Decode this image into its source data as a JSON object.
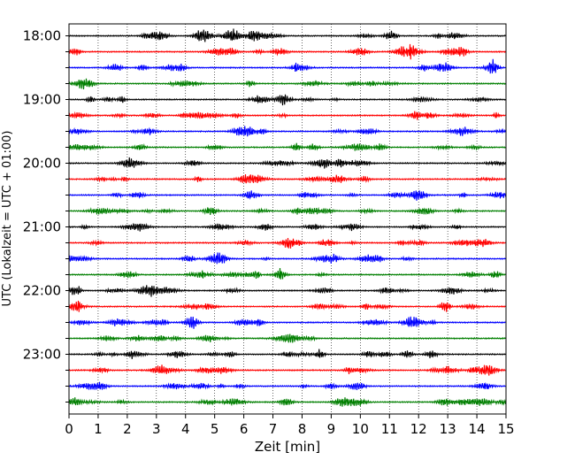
{
  "chart_data": {
    "type": "line",
    "xlabel": "Zeit  [min]",
    "ylabel": "UTC (Lokalzeit = UTC + 01:00)",
    "xlim": [
      0,
      15
    ],
    "x_ticks": [
      0,
      1,
      2,
      3,
      4,
      5,
      6,
      7,
      8,
      9,
      10,
      11,
      12,
      13,
      14,
      15
    ],
    "y_ticks": [
      "18:00",
      "19:00",
      "20:00",
      "21:00",
      "22:00",
      "23:00"
    ],
    "grid": "vertical dotted",
    "trace_interval_minutes": 15,
    "trace_colors": [
      "#000000",
      "#ff0000",
      "#0000ff",
      "#007f00"
    ],
    "traces": [
      "18:00",
      "18:15",
      "18:30",
      "18:45",
      "19:00",
      "19:15",
      "19:30",
      "19:45",
      "20:00",
      "20:15",
      "20:30",
      "20:45",
      "21:00",
      "21:15",
      "21:30",
      "21:45",
      "22:00",
      "22:15",
      "22:30",
      "22:45",
      "23:00",
      "23:15",
      "23:30",
      "23:45"
    ]
  }
}
